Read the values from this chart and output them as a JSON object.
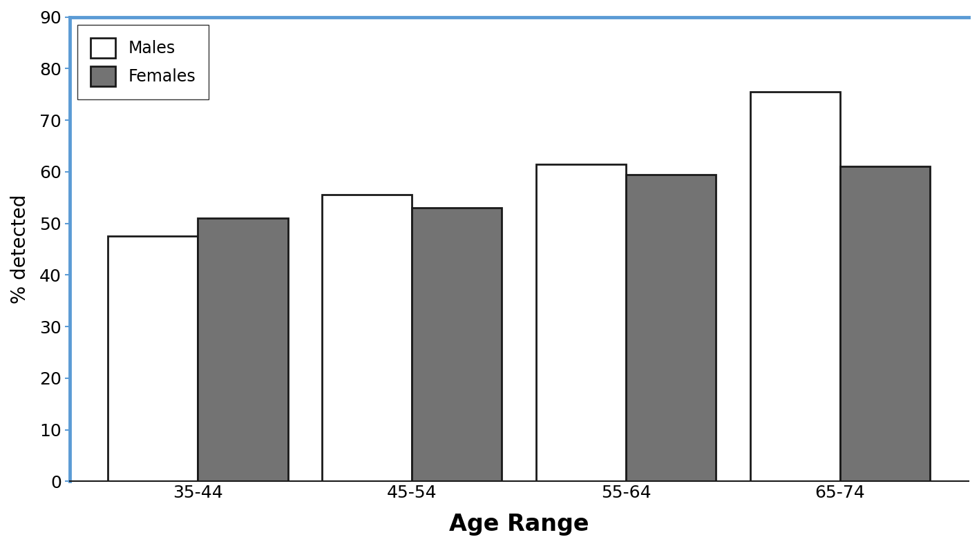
{
  "categories": [
    "35-44",
    "45-54",
    "55-64",
    "65-74"
  ],
  "males": [
    47.5,
    55.5,
    61.5,
    75.5
  ],
  "females": [
    51.0,
    53.0,
    59.5,
    61.0
  ],
  "male_color": "#ffffff",
  "female_color": "#737373",
  "bar_edge_color": "#1a1a1a",
  "bar_linewidth": 2.0,
  "ylabel": "% detected",
  "xlabel": "Age Range",
  "ylim": [
    0,
    90
  ],
  "yticks": [
    0,
    10,
    20,
    30,
    40,
    50,
    60,
    70,
    80,
    90
  ],
  "legend_labels": [
    "Males",
    "Females"
  ],
  "bar_width": 0.42,
  "spine_color_blue": "#5b9bd5",
  "spine_color_dark": "#1a1a1a",
  "ylabel_fontsize": 20,
  "xlabel_fontsize": 24,
  "tick_fontsize": 18,
  "legend_fontsize": 17
}
